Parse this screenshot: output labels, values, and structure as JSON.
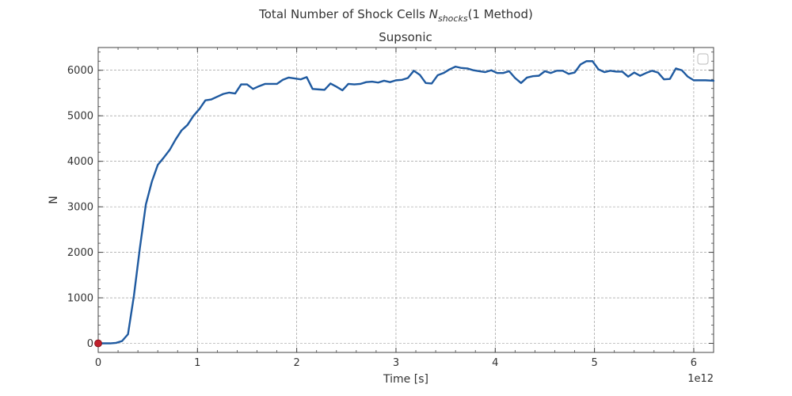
{
  "chart_data": {
    "type": "line",
    "title": "Total Number of Shock Cells",
    "title_math": "N",
    "title_math_sub": "shocks",
    "title_suffix": "(1 Method)",
    "subtitle": "Supsonic",
    "xlabel": "Time [s]",
    "ylabel": "N",
    "x_offset_label": "1e12",
    "xlim": [
      0,
      6.2
    ],
    "ylim": [
      -200,
      6500
    ],
    "xticks": [
      0,
      1,
      2,
      3,
      4,
      5,
      6
    ],
    "yticks": [
      0,
      1000,
      2000,
      3000,
      4000,
      5000,
      6000
    ],
    "grid": true,
    "legend": "top-right (empty)",
    "colors": {
      "line": "#1f5aa0",
      "marker": "#c0202c"
    },
    "marker": {
      "x": 0,
      "y": 0
    },
    "series": [
      {
        "x": [
          0,
          0.06,
          0.12,
          0.18,
          0.24,
          0.3,
          0.36,
          0.42,
          0.48,
          0.54,
          0.6,
          0.66,
          0.72,
          0.78,
          0.84,
          0.9,
          0.96,
          1.02,
          1.08,
          1.14,
          1.2,
          1.26,
          1.32,
          1.38,
          1.44,
          1.5,
          1.56,
          1.62,
          1.68,
          1.74,
          1.8,
          1.86,
          1.92,
          1.98,
          2.04,
          2.1,
          2.16,
          2.22,
          2.28,
          2.34,
          2.4,
          2.46,
          2.52,
          2.58,
          2.64,
          2.7,
          2.76,
          2.82,
          2.88,
          2.94,
          3.0,
          3.06,
          3.12,
          3.18,
          3.24,
          3.3,
          3.36,
          3.42,
          3.48,
          3.54,
          3.6,
          3.66,
          3.72,
          3.78,
          3.84,
          3.9,
          3.96,
          4.02,
          4.08,
          4.14,
          4.2,
          4.26,
          4.32,
          4.38,
          4.44,
          4.5,
          4.56,
          4.62,
          4.68,
          4.74,
          4.8,
          4.86,
          4.92,
          4.98,
          5.04,
          5.1,
          5.16,
          5.22,
          5.28,
          5.34,
          5.4,
          5.46,
          5.52,
          5.58,
          5.64,
          5.7,
          5.76,
          5.82,
          5.88,
          5.94,
          6.0,
          6.06,
          6.12,
          6.2
        ],
        "values": [
          0,
          0,
          0,
          10,
          50,
          200,
          1050,
          2100,
          3050,
          3550,
          3920,
          4080,
          4250,
          4480,
          4680,
          4800,
          5000,
          5150,
          5340,
          5360,
          5420,
          5480,
          5510,
          5490,
          5690,
          5690,
          5590,
          5650,
          5700,
          5700,
          5700,
          5790,
          5840,
          5820,
          5800,
          5850,
          5590,
          5580,
          5570,
          5710,
          5640,
          5560,
          5700,
          5690,
          5700,
          5740,
          5750,
          5730,
          5770,
          5740,
          5780,
          5790,
          5830,
          5990,
          5900,
          5720,
          5710,
          5890,
          5940,
          6020,
          6080,
          6050,
          6040,
          6000,
          5980,
          5960,
          6000,
          5940,
          5940,
          5980,
          5830,
          5720,
          5840,
          5870,
          5880,
          5980,
          5940,
          5990,
          5990,
          5920,
          5950,
          6130,
          6200,
          6200,
          6020,
          5960,
          5990,
          5970,
          5970,
          5860,
          5950,
          5880,
          5940,
          5990,
          5950,
          5800,
          5810,
          6040,
          6000,
          5860,
          5780,
          5780,
          5780,
          5770
        ]
      }
    ]
  }
}
